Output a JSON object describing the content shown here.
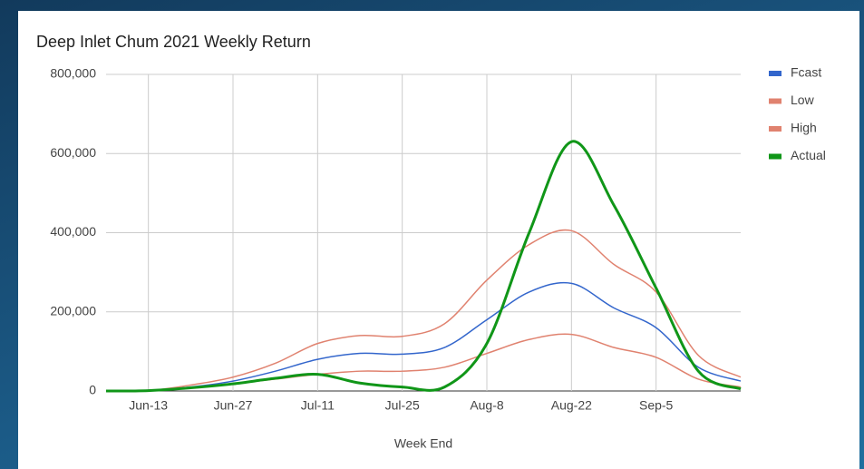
{
  "chart_data": {
    "type": "line",
    "title": "Deep Inlet Chum 2021 Weekly Return",
    "x_label": "Week End",
    "categories": [
      null,
      "Jun-13",
      null,
      "Jun-27",
      null,
      "Jul-11",
      null,
      "Jul-25",
      null,
      "Aug-8",
      null,
      "Aug-22",
      null,
      "Sep-5",
      null,
      null
    ],
    "series": [
      {
        "name": "Fcast",
        "color": "#3366cc",
        "values": [
          0,
          1000,
          10000,
          25000,
          50000,
          80000,
          95000,
          93000,
          110000,
          180000,
          250000,
          272000,
          210000,
          160000,
          60000,
          25000
        ]
      },
      {
        "name": "Low",
        "color": "#e0826f",
        "values": [
          0,
          1000,
          8000,
          18000,
          30000,
          42000,
          50000,
          50000,
          60000,
          95000,
          130000,
          143000,
          110000,
          85000,
          30000,
          10000
        ]
      },
      {
        "name": "High",
        "color": "#e0826f",
        "values": [
          0,
          1000,
          15000,
          35000,
          70000,
          120000,
          140000,
          138000,
          170000,
          280000,
          370000,
          405000,
          320000,
          250000,
          90000,
          35000
        ]
      },
      {
        "name": "Actual",
        "color": "#109618",
        "values": [
          0,
          1000,
          8000,
          18000,
          32000,
          42000,
          20000,
          10000,
          10000,
          120000,
          400000,
          630000,
          470000,
          260000,
          50000,
          5000
        ]
      }
    ],
    "ylim": [
      0,
      800000
    ],
    "yticks": [
      0,
      {
        "value": 200000,
        "label": "200,000"
      },
      {
        "value": 400000,
        "label": "400,000"
      },
      {
        "value": 600000,
        "label": "600,000"
      },
      {
        "value": 800000,
        "label": "800,000"
      }
    ],
    "grid": true,
    "legend": "right"
  }
}
